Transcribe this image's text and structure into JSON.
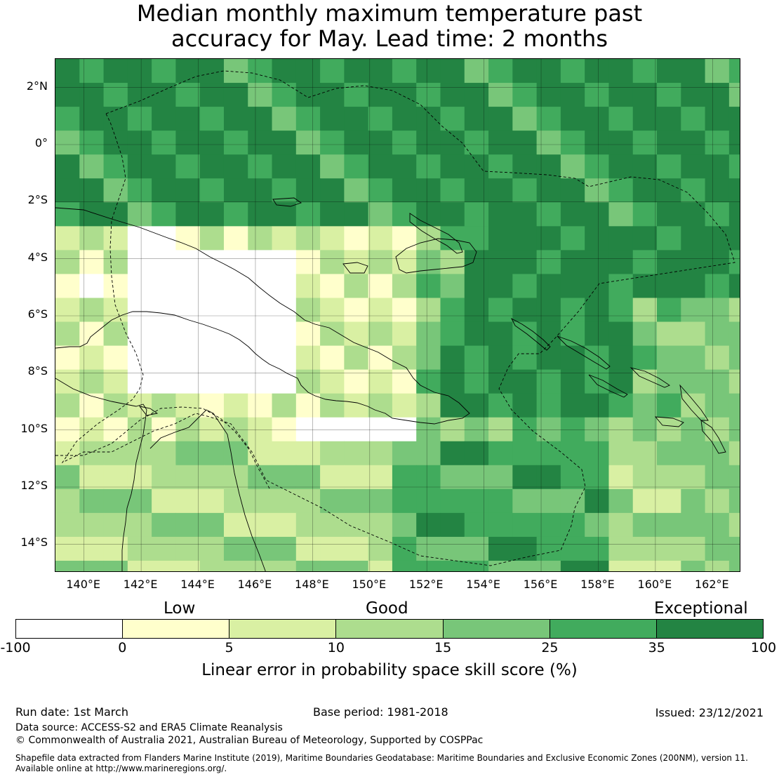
{
  "title_line1": "Median monthly maximum temperature past",
  "title_line2": "accuracy for May. Lead time: 2 months",
  "map": {
    "lat_labels": [
      "2°N",
      "0°",
      "2°S",
      "4°S",
      "6°S",
      "8°S",
      "10°S",
      "12°S",
      "14°S"
    ],
    "lat_values": [
      2,
      0,
      -2,
      -4,
      -6,
      -8,
      -10,
      -12,
      -14
    ],
    "lon_labels": [
      "140°E",
      "142°E",
      "144°E",
      "146°E",
      "148°E",
      "150°E",
      "152°E",
      "154°E",
      "156°E",
      "158°E",
      "160°E",
      "162°E"
    ],
    "lon_values": [
      140,
      142,
      144,
      146,
      148,
      150,
      152,
      154,
      156,
      158,
      160,
      162
    ],
    "lon_range": [
      139,
      163
    ],
    "lat_range": [
      -15,
      3
    ]
  },
  "legend": {
    "categories": [
      "Low",
      "Good",
      "Exceptional"
    ],
    "bounds": [
      "-100",
      "0",
      "5",
      "10",
      "15",
      "25",
      "35",
      "100"
    ],
    "colors": [
      "#ffffff",
      "#ffffcc",
      "#d9f0a3",
      "#addd8e",
      "#78c679",
      "#41ab5d",
      "#238443"
    ],
    "axis_label": "Linear error in probability space skill score (%)"
  },
  "footer": {
    "run_date": "Run date: 1st March",
    "base_period": "Base period: 1981-2018",
    "issued": "Issued: 23/12/2021",
    "data_source": "Data source: ACCESS-S2 and ERA5 Climate Reanalysis",
    "copyright": "© Commonwealth of Australia 2021, Australian Bureau of Meteorology, Supported by COSPPac",
    "shapefile_line1": "Shapefile data extracted from Flanders Marine Institute (2019), Maritime Boundaries Geodatabase: Maritime Boundaries and Exclusive Economic Zones (200NM), version 11.",
    "shapefile_line2": "Available online at http://www.marineregions.org/."
  }
}
